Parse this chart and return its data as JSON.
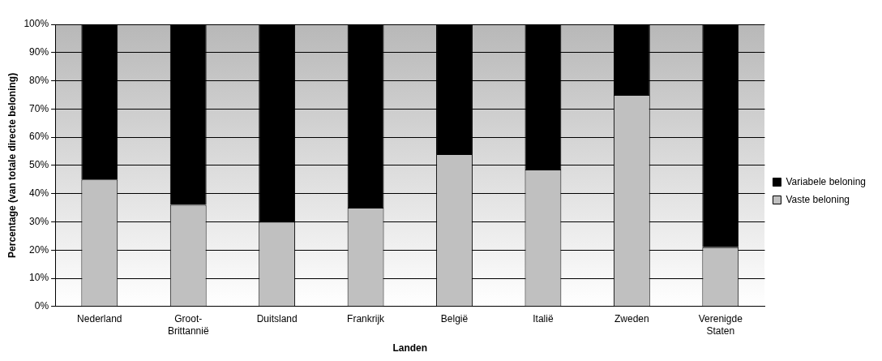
{
  "chart_data": {
    "type": "bar",
    "stacked": true,
    "xlabel": "Landen",
    "ylabel": "Percentage (van totale directe beloning)",
    "categories": [
      "Nederland",
      "Groot-Brittannië",
      "Duitsland",
      "Frankrijk",
      "België",
      "Italië",
      "Zweden",
      "Verenigde Staten"
    ],
    "series": [
      {
        "name": "Vaste beloning",
        "color": "#c0c0c0",
        "values": [
          45,
          36,
          30,
          35,
          54,
          48.5,
          75,
          21
        ]
      },
      {
        "name": "Variabele beloning",
        "color": "#000000",
        "values": [
          55,
          64,
          70,
          65,
          46,
          51.5,
          25,
          79
        ]
      }
    ],
    "ylim": [
      0,
      100
    ],
    "yticks": [
      {
        "value": 0,
        "label": "0%"
      },
      {
        "value": 10,
        "label": "10%"
      },
      {
        "value": 20,
        "label": "20%"
      },
      {
        "value": 30,
        "label": "30%"
      },
      {
        "value": 40,
        "label": "40%"
      },
      {
        "value": 50,
        "label": "50%"
      },
      {
        "value": 60,
        "label": "60%"
      },
      {
        "value": 70,
        "label": "70%"
      },
      {
        "value": 80,
        "label": "80%"
      },
      {
        "value": 90,
        "label": "90%"
      },
      {
        "value": 100,
        "label": "100%"
      }
    ],
    "grid": "y",
    "legend": "right"
  }
}
